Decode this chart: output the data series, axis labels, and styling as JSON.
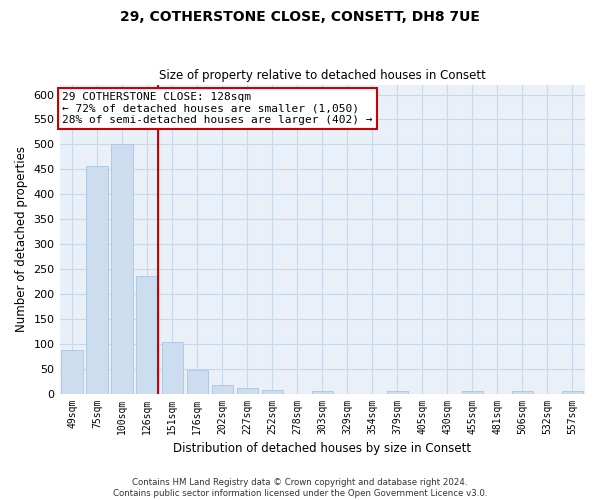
{
  "title": "29, COTHERSTONE CLOSE, CONSETT, DH8 7UE",
  "subtitle": "Size of property relative to detached houses in Consett",
  "xlabel": "Distribution of detached houses by size in Consett",
  "ylabel": "Number of detached properties",
  "categories": [
    "49sqm",
    "75sqm",
    "100sqm",
    "126sqm",
    "151sqm",
    "176sqm",
    "202sqm",
    "227sqm",
    "252sqm",
    "278sqm",
    "303sqm",
    "329sqm",
    "354sqm",
    "379sqm",
    "405sqm",
    "430sqm",
    "455sqm",
    "481sqm",
    "506sqm",
    "532sqm",
    "557sqm"
  ],
  "values": [
    88,
    457,
    500,
    235,
    103,
    47,
    18,
    11,
    7,
    0,
    5,
    0,
    0,
    5,
    0,
    0,
    5,
    0,
    5,
    0,
    5
  ],
  "bar_color": "#ccddef",
  "bar_edge_color": "#aac4de",
  "vline_color": "#cc0000",
  "vline_x_index": 3,
  "annotation_box_text": "29 COTHERSTONE CLOSE: 128sqm\n← 72% of detached houses are smaller (1,050)\n28% of semi-detached houses are larger (402) →",
  "annotation_box_color": "#cc0000",
  "annotation_text_fontsize": 8,
  "ylim": [
    0,
    620
  ],
  "yticks": [
    0,
    50,
    100,
    150,
    200,
    250,
    300,
    350,
    400,
    450,
    500,
    550,
    600
  ],
  "grid_color": "#c8d8e8",
  "background_color": "#eaf0f8",
  "footer_line1": "Contains HM Land Registry data © Crown copyright and database right 2024.",
  "footer_line2": "Contains public sector information licensed under the Open Government Licence v3.0."
}
